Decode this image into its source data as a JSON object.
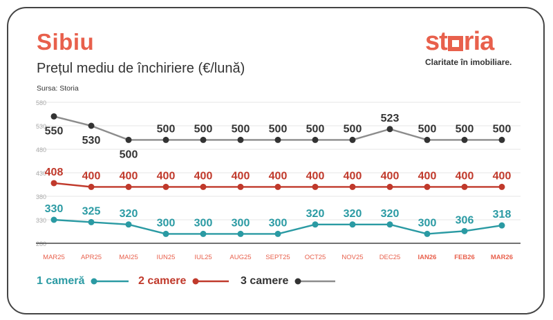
{
  "header": {
    "title": "Sibiu",
    "subtitle": "Prețul mediu de închiriere (€/lună)",
    "source": "Sursa: Storia"
  },
  "logo": {
    "word_a": "st",
    "word_b": "ria",
    "tagline": "Claritate în imobiliare."
  },
  "colors": {
    "accent": "#e8604c",
    "one_room": "#2a9aa3",
    "two_rooms": "#c0392b",
    "three_rooms_line": "#8c8c8c",
    "three_rooms_marker": "#333333"
  },
  "chart_data": {
    "type": "line",
    "categories": [
      "MAR25",
      "APR25",
      "MAI25",
      "IUN25",
      "IUL25",
      "AUG25",
      "SEPT25",
      "OCT25",
      "NOV25",
      "DEC25",
      "IAN26",
      "FEB26",
      "MAR26"
    ],
    "bold_categories": [
      "IAN26",
      "FEB26",
      "MAR26"
    ],
    "yticks": [
      280,
      330,
      380,
      430,
      480,
      530,
      580
    ],
    "ylim": [
      280,
      580
    ],
    "grid": true,
    "legend_position": "bottom",
    "series": [
      {
        "name": "1 cameră",
        "color": "#2a9aa3",
        "values": [
          330,
          325,
          320,
          300,
          300,
          300,
          300,
          320,
          320,
          320,
          300,
          306,
          318
        ]
      },
      {
        "name": "2 camere",
        "color": "#c0392b",
        "values": [
          408,
          400,
          400,
          400,
          400,
          400,
          400,
          400,
          400,
          400,
          400,
          400,
          400
        ]
      },
      {
        "name": "3 camere",
        "color": "#8c8c8c",
        "marker": "#333333",
        "values": [
          550,
          530,
          500,
          500,
          500,
          500,
          500,
          500,
          500,
          523,
          500,
          500,
          500
        ]
      }
    ]
  }
}
